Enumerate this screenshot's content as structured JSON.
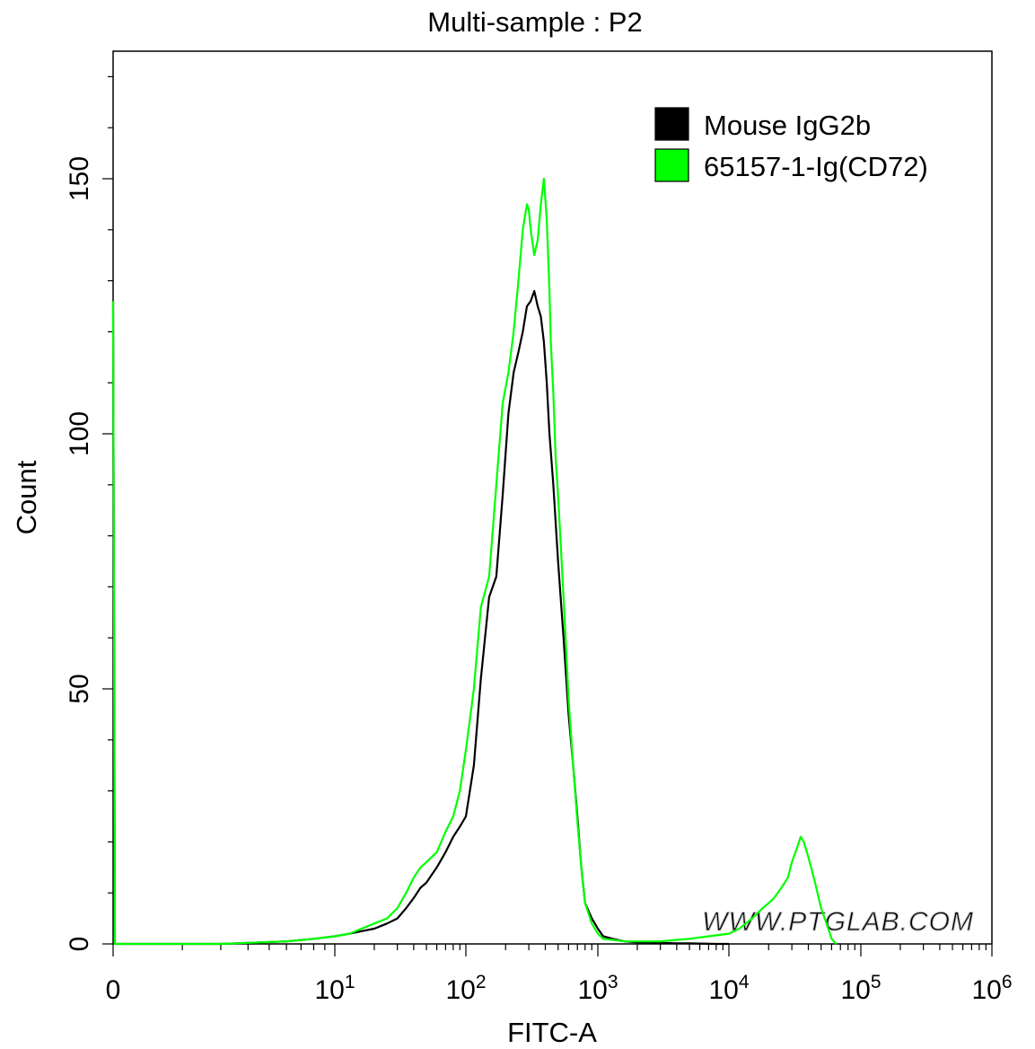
{
  "chart_data": {
    "type": "line",
    "title": "Multi-sample : P2",
    "xlabel": "FITC-A",
    "ylabel": "Count",
    "xscale": "biexponential (0 then log decades)",
    "xlim": [
      0,
      1000000
    ],
    "ylim": [
      0,
      175
    ],
    "grid": false,
    "legend_position": "top-right",
    "x_tick_labels": [
      {
        "base": "0",
        "exp": ""
      },
      {
        "base": "10",
        "exp": "1"
      },
      {
        "base": "10",
        "exp": "2"
      },
      {
        "base": "10",
        "exp": "3"
      },
      {
        "base": "10",
        "exp": "4"
      },
      {
        "base": "10",
        "exp": "5"
      },
      {
        "base": "10",
        "exp": "6"
      }
    ],
    "y_ticks": [
      0,
      50,
      100,
      150
    ],
    "y_tick_labels": [
      "0",
      "50",
      "100",
      "150"
    ],
    "watermark": "WWW.PTGLAB.COM",
    "series": [
      {
        "name": "Mouse IgG2b",
        "color": "#000000",
        "x": [
          0,
          0.5,
          1.2,
          3,
          6,
          8,
          10,
          13,
          16,
          20,
          25,
          30,
          35,
          40,
          45,
          50,
          60,
          70,
          80,
          90,
          100,
          115,
          130,
          150,
          170,
          190,
          210,
          230,
          250,
          270,
          290,
          310,
          330,
          350,
          370,
          390,
          410,
          430,
          460,
          500,
          550,
          600,
          650,
          700,
          750,
          800,
          900,
          1000,
          1100,
          1300,
          1600,
          2000,
          2500,
          3000,
          4000,
          5000,
          8000,
          10000
        ],
        "values": [
          126,
          0,
          0,
          0,
          0.5,
          1,
          1.5,
          2,
          2.5,
          3,
          4,
          5,
          7,
          9,
          11,
          12,
          15,
          18,
          21,
          23,
          25,
          35,
          52,
          68,
          72,
          88,
          104,
          112,
          116,
          120,
          125,
          126,
          128,
          125,
          123,
          118,
          110,
          100,
          90,
          75,
          60,
          45,
          35,
          25,
          15,
          8,
          5,
          3,
          1.5,
          1,
          0.5,
          0.3,
          0.3,
          0.2,
          0.1,
          0.1,
          0,
          0
        ]
      },
      {
        "name": "65157-1-Ig(CD72)",
        "color": "#00ff00",
        "x": [
          0,
          0.5,
          1.2,
          3,
          6,
          8,
          10,
          13,
          16,
          20,
          25,
          30,
          35,
          40,
          45,
          50,
          60,
          70,
          80,
          90,
          100,
          115,
          130,
          150,
          170,
          190,
          210,
          230,
          250,
          270,
          290,
          300,
          310,
          330,
          350,
          370,
          390,
          410,
          420,
          430,
          440,
          460,
          480,
          500,
          550,
          600,
          650,
          700,
          750,
          800,
          900,
          1000,
          1100,
          1300,
          1600,
          2000,
          2500,
          3000,
          4000,
          5000,
          7000,
          10000,
          12000,
          15000,
          18000,
          20000,
          22000,
          25000,
          28000,
          30000,
          33000,
          35000,
          37000,
          40000,
          42000,
          45000,
          50000,
          55000,
          60000,
          65000
        ],
        "values": [
          126,
          0,
          0,
          0,
          0.5,
          1,
          1.5,
          2,
          3,
          4,
          5,
          7,
          10,
          13,
          15,
          16,
          18,
          22,
          25,
          30,
          38,
          50,
          66,
          72,
          90,
          106,
          112,
          120,
          130,
          140,
          145,
          144,
          140,
          135,
          138,
          145,
          150,
          142,
          135,
          128,
          118,
          108,
          95,
          88,
          68,
          48,
          35,
          24,
          15,
          8,
          4,
          2,
          1,
          0.8,
          0.5,
          0.5,
          0.5,
          0.5,
          0.8,
          1,
          1.5,
          2,
          3,
          5,
          7,
          8,
          9,
          11,
          13,
          16,
          19,
          21,
          20,
          17,
          15,
          12,
          7,
          4,
          1,
          0
        ]
      }
    ]
  }
}
